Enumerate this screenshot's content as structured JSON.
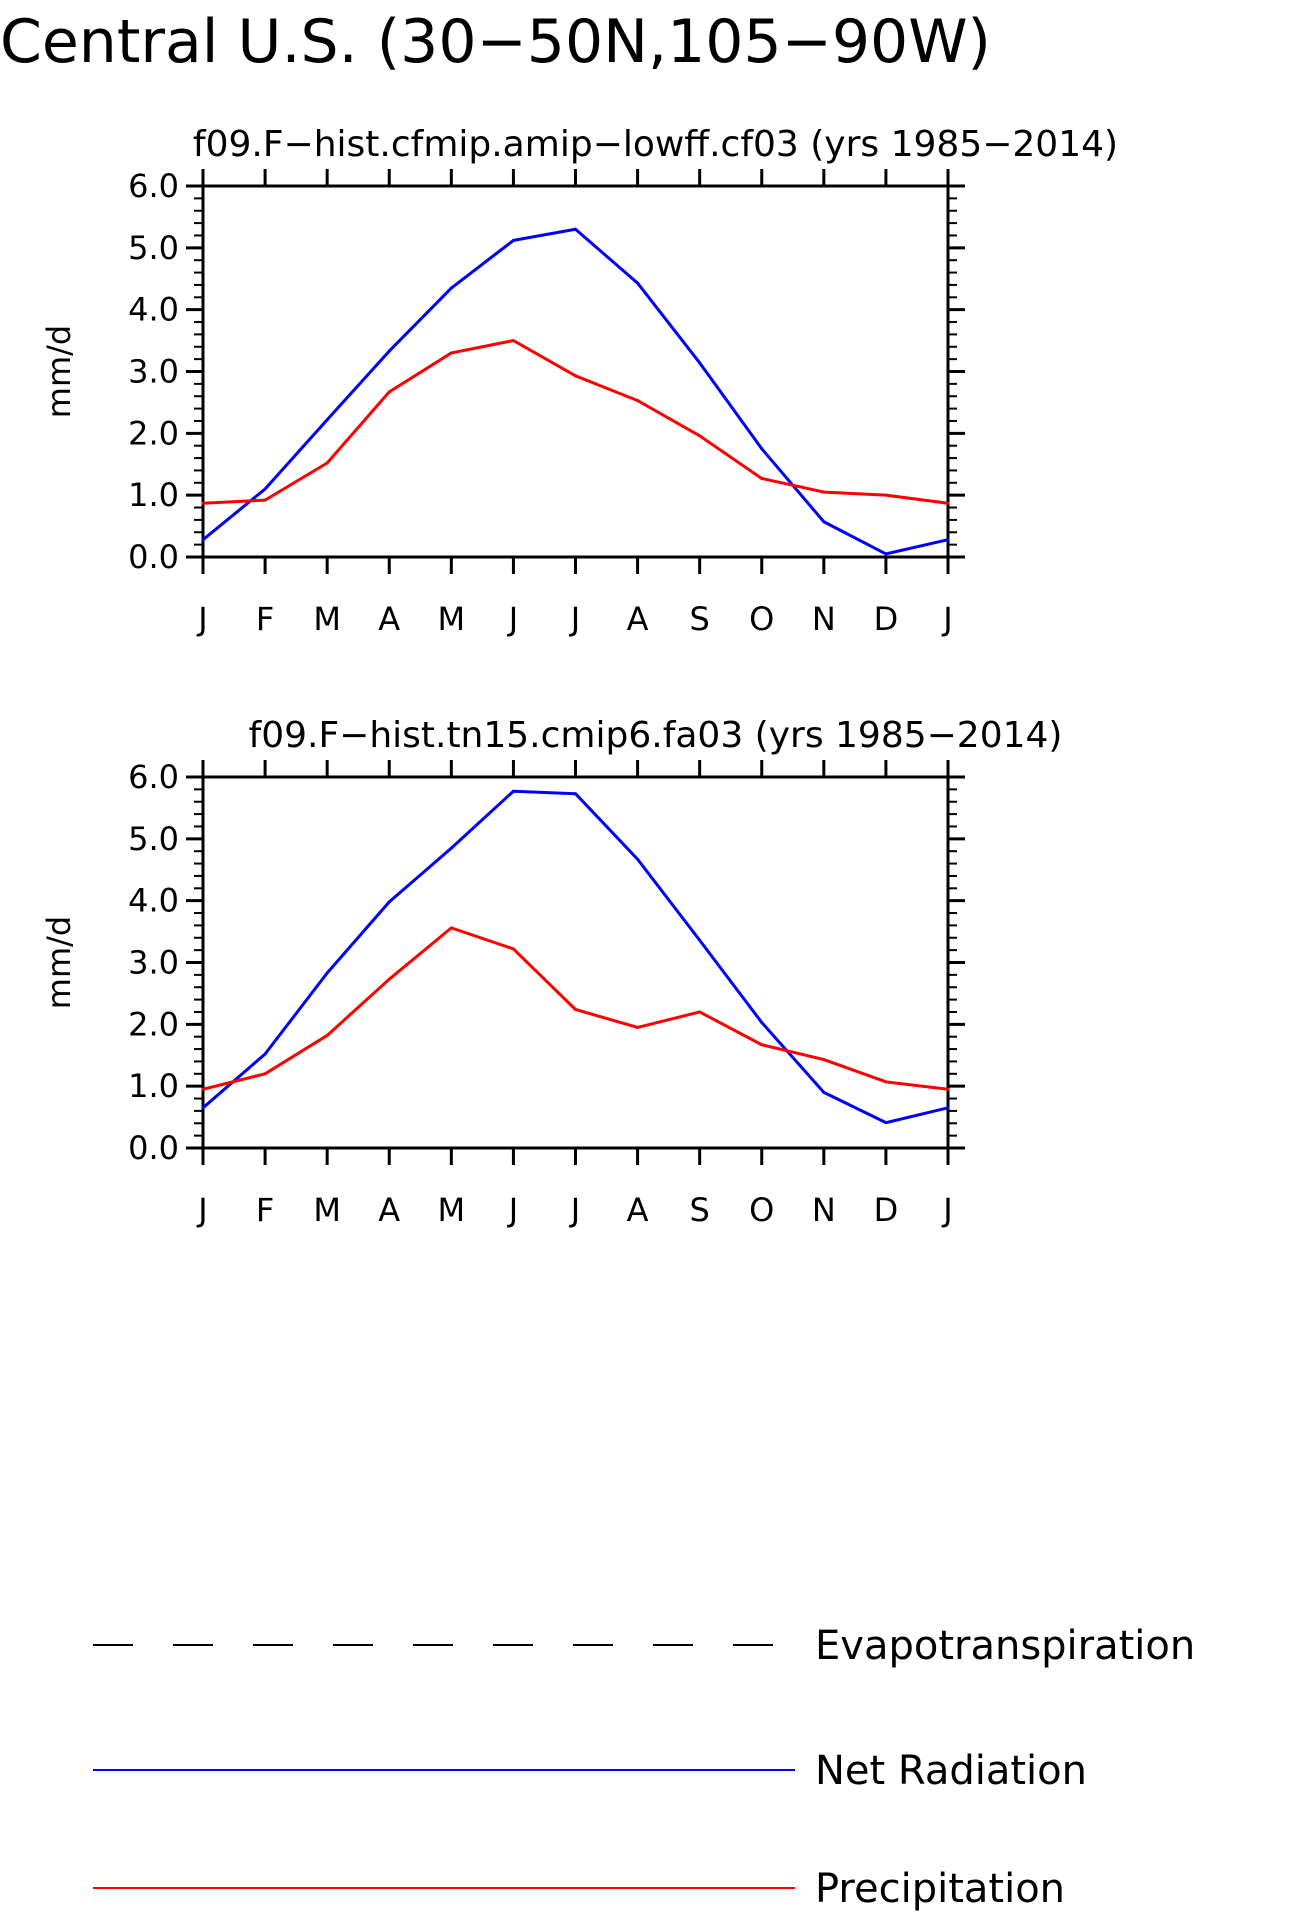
{
  "title": "Central U.S. (30−50N,105−90W)",
  "colors": {
    "net_radiation": "#0000ff",
    "precipitation": "#ff0000",
    "evapotranspiration": "#000000"
  },
  "legend": [
    {
      "label": "Evapotranspiration",
      "style": "dashed",
      "color": "#000000"
    },
    {
      "label": "Net Radiation",
      "style": "solid",
      "color": "#0000ff"
    },
    {
      "label": "Precipitation",
      "style": "solid",
      "color": "#ff0000"
    }
  ],
  "chart_data": [
    {
      "type": "line",
      "title": "f09.F−hist.cfmip.amip−lowff.cf03 (yrs 1985−2014)",
      "ylabel": "mm/d",
      "xlabel": "",
      "categories": [
        "J",
        "F",
        "M",
        "A",
        "M",
        "J",
        "J",
        "A",
        "S",
        "O",
        "N",
        "D",
        "J"
      ],
      "ylim": [
        0,
        6
      ],
      "yticks": [
        "0.0",
        "1.0",
        "2.0",
        "3.0",
        "4.0",
        "5.0",
        "6.0"
      ],
      "grid": false,
      "series": [
        {
          "name": "Net Radiation",
          "color": "#0000ff",
          "values": [
            0.28,
            1.1,
            2.22,
            3.33,
            4.35,
            5.12,
            5.3,
            4.43,
            3.14,
            1.75,
            0.57,
            0.05,
            0.28
          ]
        },
        {
          "name": "Precipitation",
          "color": "#ff0000",
          "values": [
            0.87,
            0.92,
            1.52,
            2.67,
            3.3,
            3.5,
            2.93,
            2.53,
            1.96,
            1.27,
            1.05,
            1.0,
            0.87
          ]
        }
      ]
    },
    {
      "type": "line",
      "title": "f09.F−hist.tn15.cmip6.fa03 (yrs 1985−2014)",
      "ylabel": "mm/d",
      "xlabel": "",
      "categories": [
        "J",
        "F",
        "M",
        "A",
        "M",
        "J",
        "J",
        "A",
        "S",
        "O",
        "N",
        "D",
        "J"
      ],
      "ylim": [
        0,
        6
      ],
      "yticks": [
        "0.0",
        "1.0",
        "2.0",
        "3.0",
        "4.0",
        "5.0",
        "6.0"
      ],
      "grid": false,
      "series": [
        {
          "name": "Net Radiation",
          "color": "#0000ff",
          "values": [
            0.65,
            1.52,
            2.83,
            3.98,
            4.85,
            5.77,
            5.73,
            4.67,
            3.36,
            2.03,
            0.9,
            0.41,
            0.65
          ]
        },
        {
          "name": "Precipitation",
          "color": "#ff0000",
          "values": [
            0.95,
            1.2,
            1.82,
            2.73,
            3.56,
            3.22,
            2.24,
            1.95,
            2.2,
            1.67,
            1.43,
            1.07,
            0.95
          ]
        }
      ]
    }
  ]
}
